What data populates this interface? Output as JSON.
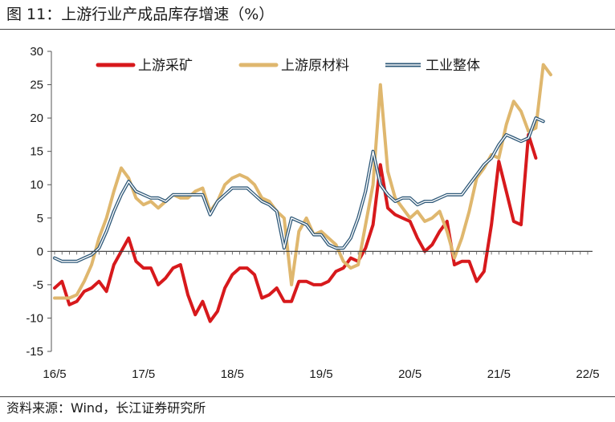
{
  "figure": {
    "title": "图 11：上游行业产成品库存增速（%）",
    "source": "资料来源：Wind，长江证券研究所"
  },
  "chart_data": {
    "type": "line",
    "xlabel": "",
    "ylabel": "",
    "ylim": [
      -15,
      30
    ],
    "yticks": [
      -15,
      -10,
      -5,
      0,
      5,
      10,
      15,
      20,
      25,
      30
    ],
    "x_tick_labels": [
      "16/5",
      "17/5",
      "18/5",
      "19/5",
      "20/5",
      "21/5",
      "22/5"
    ],
    "x_tick_index": [
      0,
      12,
      24,
      36,
      48,
      60,
      72
    ],
    "x": [
      "2016-05",
      "2016-06",
      "2016-07",
      "2016-08",
      "2016-09",
      "2016-10",
      "2016-11",
      "2016-12",
      "2017-01",
      "2017-02",
      "2017-03",
      "2017-04",
      "2017-05",
      "2017-06",
      "2017-07",
      "2017-08",
      "2017-09",
      "2017-10",
      "2017-11",
      "2017-12",
      "2018-01",
      "2018-02",
      "2018-03",
      "2018-04",
      "2018-05",
      "2018-06",
      "2018-07",
      "2018-08",
      "2018-09",
      "2018-10",
      "2018-11",
      "2018-12",
      "2019-01",
      "2019-02",
      "2019-03",
      "2019-04",
      "2019-05",
      "2019-06",
      "2019-07",
      "2019-08",
      "2019-09",
      "2019-10",
      "2019-11",
      "2019-12",
      "2020-01",
      "2020-02",
      "2020-03",
      "2020-04",
      "2020-05",
      "2020-06",
      "2020-07",
      "2020-08",
      "2020-09",
      "2020-10",
      "2020-11",
      "2020-12",
      "2021-01",
      "2021-02",
      "2021-03",
      "2021-04",
      "2021-05",
      "2021-06",
      "2021-07",
      "2021-08",
      "2021-09",
      "2021-10",
      "2021-11",
      "2021-12",
      "2022-01",
      "2022-02",
      "2022-03",
      "2022-04",
      "2022-05"
    ],
    "legend_position": "top",
    "grid": false,
    "series": [
      {
        "name": "上游采矿",
        "color": "#d7191c",
        "values": [
          -5.5,
          -4.5,
          -8.0,
          -7.5,
          -6.0,
          -5.5,
          -4.5,
          -6.0,
          -2.0,
          0.0,
          2.0,
          -1.5,
          -2.5,
          -2.5,
          -5.0,
          -4.0,
          -2.5,
          -2.0,
          -6.5,
          -9.5,
          -7.5,
          -10.5,
          -9.0,
          -5.5,
          -3.5,
          -2.5,
          -2.5,
          -3.5,
          -7.0,
          -6.5,
          -5.5,
          -7.5,
          -7.5,
          -4.5,
          -4.5,
          -5.0,
          -5.0,
          -4.5,
          -3.0,
          -2.5,
          -1.0,
          -1.5,
          0.5,
          4.0,
          13.0,
          6.5,
          5.5,
          5.0,
          4.5,
          2.0,
          0.0,
          1.0,
          3.0,
          4.5,
          -2.0,
          -1.5,
          -1.5,
          -4.5,
          -3.0,
          4.0,
          13.5,
          9.0,
          4.5,
          4.0,
          17.5,
          14.0,
          null,
          null,
          null,
          null,
          null,
          null,
          null
        ]
      },
      {
        "name": "上游原材料",
        "color": "#dfb76e",
        "values": [
          -7.0,
          -7.0,
          -7.0,
          -6.5,
          -4.5,
          -2.0,
          2.0,
          5.0,
          9.0,
          12.5,
          11.0,
          8.0,
          7.0,
          7.5,
          6.5,
          7.5,
          8.5,
          8.0,
          8.0,
          9.0,
          9.5,
          6.0,
          7.5,
          10.0,
          11.0,
          11.5,
          11.0,
          10.0,
          8.0,
          7.5,
          6.0,
          5.0,
          -5.0,
          3.0,
          5.0,
          2.5,
          3.0,
          2.0,
          1.0,
          -1.5,
          -2.5,
          -2.0,
          4.0,
          10.0,
          25.0,
          12.0,
          8.0,
          6.5,
          5.0,
          6.0,
          4.5,
          5.0,
          6.0,
          3.0,
          -1.0,
          2.0,
          6.0,
          11.0,
          12.5,
          14.5,
          14.0,
          19.0,
          22.5,
          21.0,
          18.0,
          18.5,
          28.0,
          26.5,
          null,
          null,
          null,
          null,
          null
        ]
      },
      {
        "name": "工业整体",
        "color": "#2e5878",
        "values": [
          -1.0,
          -1.5,
          -1.5,
          -1.5,
          -1.0,
          -0.5,
          0.5,
          3.0,
          6.0,
          8.5,
          10.5,
          9.0,
          8.5,
          8.0,
          8.0,
          7.5,
          8.5,
          8.5,
          8.5,
          8.5,
          8.5,
          5.5,
          7.5,
          8.5,
          9.5,
          9.5,
          9.5,
          8.5,
          7.5,
          7.0,
          6.0,
          0.5,
          5.0,
          4.5,
          4.0,
          2.5,
          2.5,
          1.0,
          0.5,
          0.5,
          2.0,
          5.0,
          9.0,
          15.0,
          10.0,
          8.5,
          7.5,
          8.0,
          8.0,
          7.0,
          7.5,
          7.5,
          8.0,
          8.5,
          8.5,
          8.5,
          10.0,
          11.5,
          13.0,
          14.0,
          16.0,
          17.5,
          17.0,
          16.5,
          17.0,
          20.0,
          19.5,
          null,
          null,
          null,
          null,
          null,
          null
        ]
      }
    ]
  }
}
